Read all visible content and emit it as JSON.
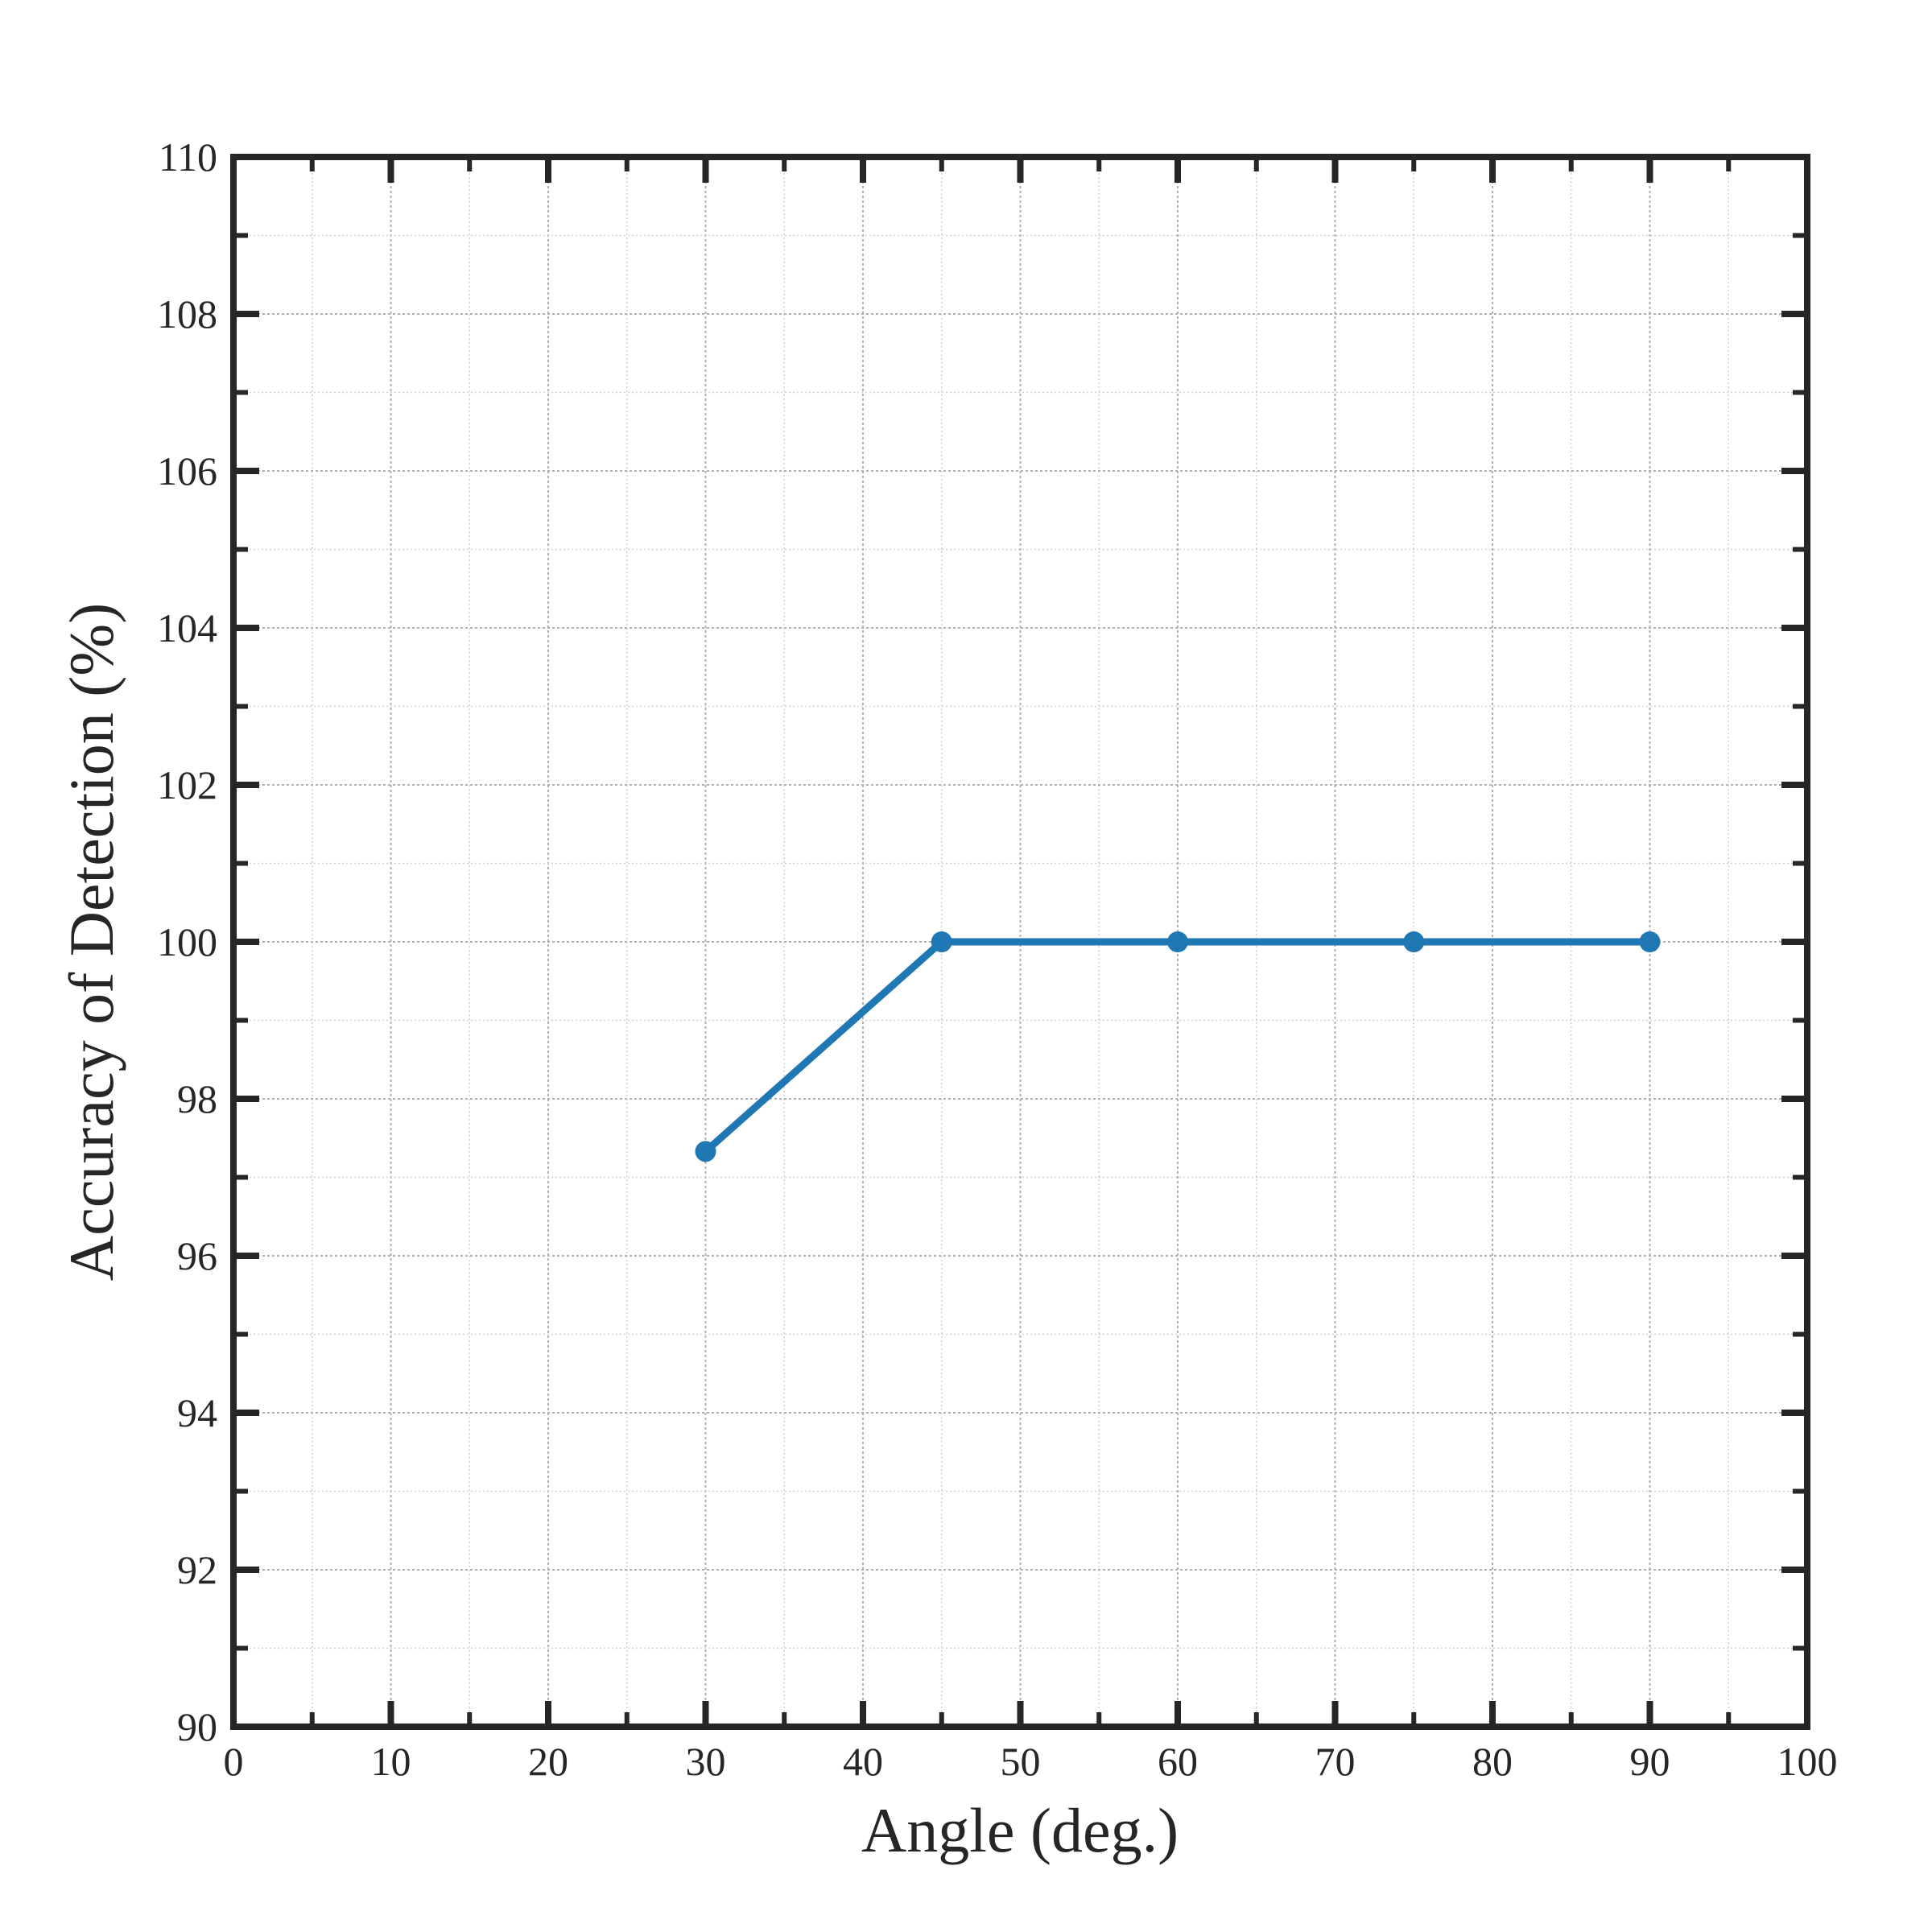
{
  "chart_data": {
    "type": "line",
    "xlabel": "Angle (deg.)",
    "ylabel": "Accuracy of Detection (%)",
    "xlim": [
      0,
      100
    ],
    "ylim": [
      90,
      110
    ],
    "x_ticks": [
      0,
      10,
      20,
      30,
      40,
      50,
      60,
      70,
      80,
      90,
      100
    ],
    "y_ticks": [
      90,
      92,
      94,
      96,
      98,
      100,
      102,
      104,
      106,
      108,
      110
    ],
    "x_minor_step": 5,
    "y_minor_step": 1,
    "grid": true,
    "series": [
      {
        "color": "#1f77b4",
        "marker": "circle",
        "x": [
          30,
          45,
          60,
          75,
          90
        ],
        "y": [
          97.33,
          100,
          100,
          100,
          100
        ]
      }
    ]
  }
}
